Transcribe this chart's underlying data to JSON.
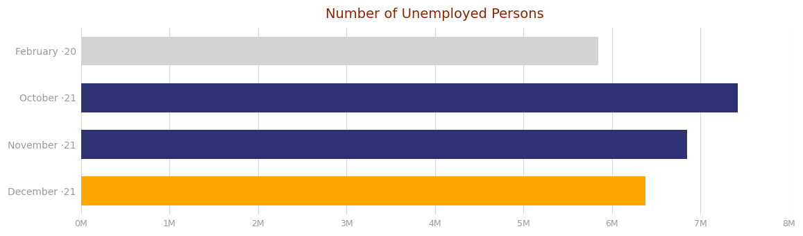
{
  "title": "Number of Unemployed Persons",
  "title_color": "#8B2500",
  "title_fontsize": 14,
  "categories": [
    "February ‧20",
    "October ‧21",
    "November ‧21",
    "December ‧21"
  ],
  "values": [
    5850000,
    7420000,
    6850000,
    6380000
  ],
  "bar_colors": [
    "#D3D3D3",
    "#2E3272",
    "#2E3272",
    "#FFA500"
  ],
  "xlim": [
    0,
    8000000
  ],
  "xtick_values": [
    0,
    1000000,
    2000000,
    3000000,
    4000000,
    5000000,
    6000000,
    7000000,
    8000000
  ],
  "xtick_labels": [
    "0M",
    "1M",
    "2M",
    "3M",
    "4M",
    "5M",
    "6M",
    "7M",
    "8M"
  ],
  "background_color": "#FFFFFF",
  "grid_color": "#D8D8D8",
  "tick_color": "#999999",
  "bar_height": 0.62,
  "figsize": [
    11.57,
    3.4
  ],
  "dpi": 100
}
